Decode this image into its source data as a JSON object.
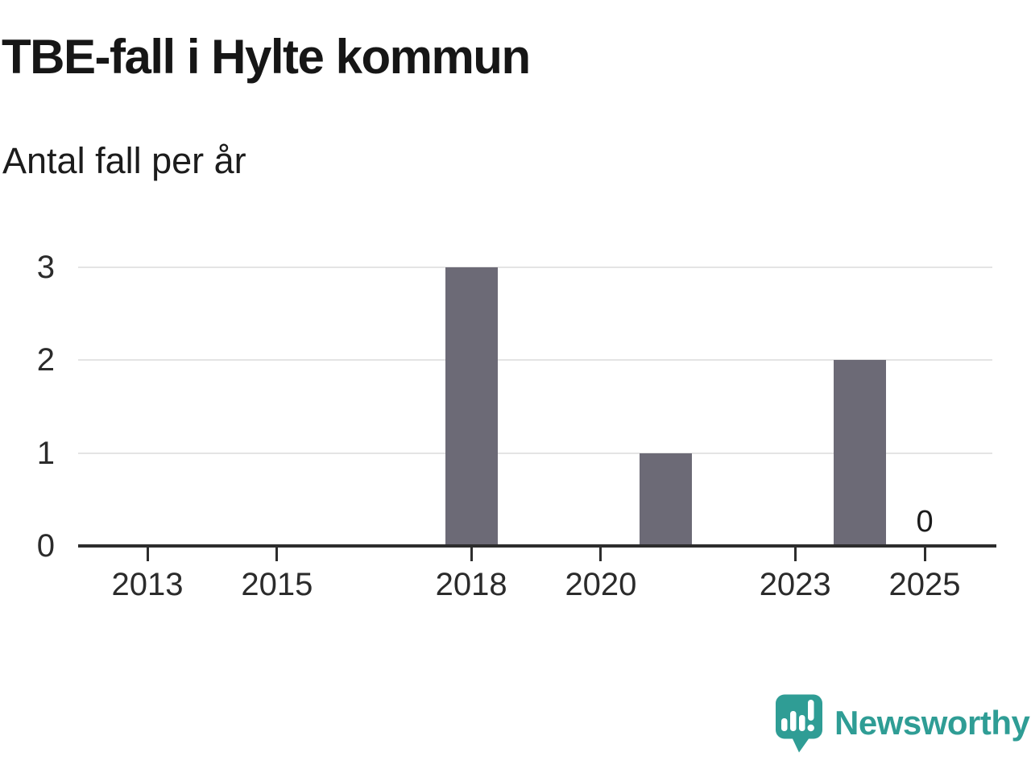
{
  "title": "TBE-fall i Hylte kommun",
  "subtitle": "Antal fall per år",
  "branding": {
    "logo_text": "Newsworthy",
    "logo_icon": "newsworthy-speech-bubble-barchart-icon",
    "brand_color": "#2f9d95"
  },
  "colors": {
    "bar": "#6c6a76",
    "axis": "#2d2d2d",
    "gridline": "#e4e4e4",
    "text": "#1a1a1a"
  },
  "chart_data": {
    "type": "bar",
    "title": "TBE-fall i Hylte kommun",
    "subtitle": "Antal fall per år",
    "xlabel": "",
    "ylabel": "Antal fall per år",
    "years": [
      2012,
      2013,
      2014,
      2015,
      2016,
      2017,
      2018,
      2019,
      2020,
      2021,
      2022,
      2023,
      2024,
      2025
    ],
    "values": [
      0,
      0,
      0,
      0,
      0,
      0,
      3,
      0,
      0,
      1,
      0,
      0,
      2,
      0
    ],
    "x_tick_years": [
      2013,
      2015,
      2018,
      2020,
      2023,
      2025
    ],
    "x_tick_labels": [
      "2013",
      "2015",
      "2018",
      "2020",
      "2023",
      "2025"
    ],
    "y_ticks": [
      0,
      1,
      2,
      3
    ],
    "y_tick_labels": [
      "0",
      "1",
      "2",
      "3"
    ],
    "ylim": [
      0,
      3
    ],
    "grid": "horizontal",
    "legend": "none",
    "bar_color": "#6c6a76",
    "value_labels": [
      {
        "year": 2025,
        "label": "0"
      }
    ]
  }
}
